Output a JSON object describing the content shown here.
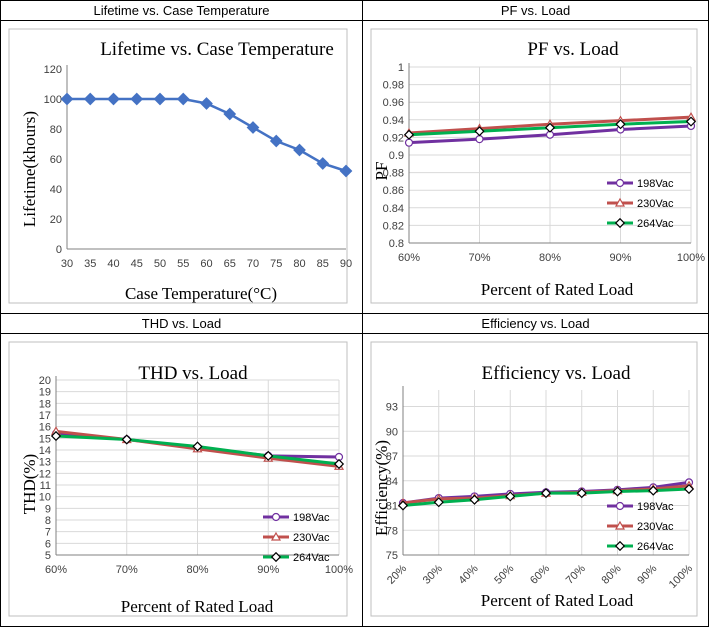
{
  "panels": [
    {
      "caption": "Lifetime vs. Case Temperature"
    },
    {
      "caption": "PF vs. Load"
    },
    {
      "caption": "THD vs. Load"
    },
    {
      "caption": "Efficiency vs. Load"
    }
  ],
  "colors": {
    "lifetime": "#4472C4",
    "s198": "#7030A0",
    "s230": "#C0504D",
    "s264": "#00B050",
    "grid": "#D9D9D9",
    "axis": "#595959"
  },
  "chart_data": [
    {
      "type": "line",
      "title": "Lifetime vs. Case Temperature",
      "xlabel": "Case Temperature(°C)",
      "ylabel": "Lifetime(khours)",
      "x": [
        30,
        35,
        40,
        45,
        50,
        55,
        60,
        65,
        70,
        75,
        80,
        85,
        90
      ],
      "ylim": [
        0,
        120
      ],
      "yticks": [
        0,
        20,
        40,
        60,
        80,
        100,
        120
      ],
      "series": [
        {
          "name": "Lifetime",
          "values": [
            100,
            100,
            100,
            100,
            100,
            100,
            97,
            90,
            81,
            72,
            66,
            57,
            52
          ]
        }
      ]
    },
    {
      "type": "line",
      "title": "PF vs. Load",
      "xlabel": "Percent of Rated Load",
      "ylabel": "PF",
      "categories": [
        "60%",
        "70%",
        "80%",
        "90%",
        "100%"
      ],
      "ylim": [
        0.8,
        1
      ],
      "yticks": [
        "0.8",
        "0.82",
        "0.84",
        "0.86",
        "0.88",
        "0.9",
        "0.92",
        "0.94",
        "0.96",
        "0.98",
        "1"
      ],
      "series": [
        {
          "name": "198Vac",
          "values": [
            0.914,
            0.918,
            0.923,
            0.929,
            0.933
          ]
        },
        {
          "name": "230Vac",
          "values": [
            0.925,
            0.93,
            0.935,
            0.939,
            0.943
          ]
        },
        {
          "name": "264Vac",
          "values": [
            0.923,
            0.927,
            0.931,
            0.935,
            0.938
          ]
        }
      ]
    },
    {
      "type": "line",
      "title": "THD vs. Load",
      "xlabel": "Percent of Rated Load",
      "ylabel": "THD(%)",
      "categories": [
        "60%",
        "70%",
        "80%",
        "90%",
        "100%"
      ],
      "ylim": [
        5,
        20
      ],
      "yticks": [
        "5",
        "6",
        "7",
        "8",
        "9",
        "10",
        "11",
        "12",
        "13",
        "14",
        "15",
        "16",
        "17",
        "18",
        "19",
        "20"
      ],
      "series": [
        {
          "name": "198Vac",
          "values": [
            15.4,
            14.9,
            14.2,
            13.5,
            13.4
          ]
        },
        {
          "name": "230Vac",
          "values": [
            15.6,
            14.9,
            14.1,
            13.3,
            12.6
          ]
        },
        {
          "name": "264Vac",
          "values": [
            15.2,
            14.9,
            14.3,
            13.5,
            12.8
          ]
        }
      ]
    },
    {
      "type": "line",
      "title": "Efficiency vs. Load",
      "xlabel": "Percent of Rated Load",
      "ylabel": "Efficiency(%)",
      "categories": [
        "20%",
        "30%",
        "40%",
        "50%",
        "60%",
        "70%",
        "80%",
        "90%",
        "100%"
      ],
      "ylim": [
        75,
        95
      ],
      "yticks": [
        "75",
        "78",
        "81",
        "84",
        "87",
        "90",
        "93"
      ],
      "series": [
        {
          "name": "198Vac",
          "values": [
            81.3,
            81.9,
            82.1,
            82.4,
            82.6,
            82.7,
            82.9,
            83.2,
            83.8
          ]
        },
        {
          "name": "230Vac",
          "values": [
            81.3,
            81.8,
            81.9,
            82.2,
            82.5,
            82.6,
            82.8,
            83.0,
            83.4
          ]
        },
        {
          "name": "264Vac",
          "values": [
            81.0,
            81.4,
            81.7,
            82.1,
            82.5,
            82.5,
            82.7,
            82.8,
            83.0
          ]
        }
      ]
    }
  ]
}
